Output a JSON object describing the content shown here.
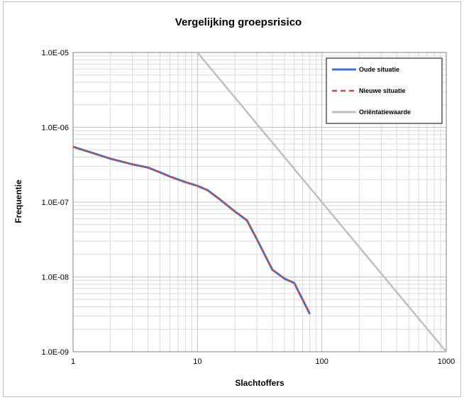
{
  "chart_data": {
    "type": "line",
    "title": "Vergelijking groepsrisico",
    "xlabel": "Slachtoffers",
    "ylabel": "Frequentie",
    "x_scale": "log",
    "y_scale": "log",
    "xlim": [
      1,
      1000
    ],
    "ylim": [
      1e-09,
      1e-05
    ],
    "grid": true,
    "legend_position": "top-right",
    "x_tick_labels": [
      "1",
      "10",
      "100",
      "1000"
    ],
    "y_tick_labels": [
      "1.0E-05",
      "1.0E-06",
      "1.0E-07",
      "1.0E-08",
      "1.0E-09"
    ],
    "series": [
      {
        "name": "Oude situatie",
        "color": "#4472c4",
        "style": "solid",
        "x": [
          1,
          2,
          3,
          4,
          5,
          6,
          8,
          10,
          12,
          15,
          20,
          25,
          30,
          40,
          50,
          60,
          80
        ],
        "y": [
          5.5e-07,
          3.8e-07,
          3.2e-07,
          2.9e-07,
          2.5e-07,
          2.2e-07,
          1.85e-07,
          1.65e-07,
          1.45e-07,
          1.1e-07,
          7.5e-08,
          5.7e-08,
          3.2e-08,
          1.25e-08,
          9.5e-09,
          8.3e-09,
          3.2e-09
        ]
      },
      {
        "name": "Nieuwe situatie",
        "color": "#c0504d",
        "style": "dashed",
        "x": [
          1,
          2,
          3,
          4,
          5,
          6,
          8,
          10,
          12,
          15,
          20,
          25,
          30,
          40,
          50,
          60,
          80
        ],
        "y": [
          5.5e-07,
          3.8e-07,
          3.2e-07,
          2.9e-07,
          2.5e-07,
          2.2e-07,
          1.85e-07,
          1.65e-07,
          1.45e-07,
          1.1e-07,
          7.5e-08,
          5.7e-08,
          3.2e-08,
          1.25e-08,
          9.5e-09,
          8.3e-09,
          3.2e-09
        ]
      },
      {
        "name": "Oriëntatiewaarde",
        "color": "#bfbfbf",
        "style": "solid",
        "x": [
          10,
          1000
        ],
        "y": [
          1e-05,
          1e-09
        ]
      }
    ]
  }
}
